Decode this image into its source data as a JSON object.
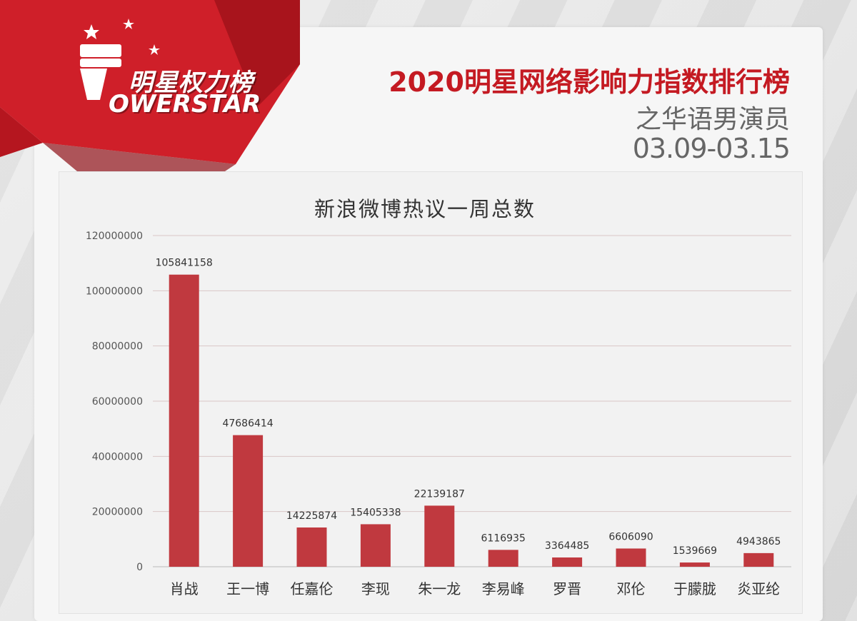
{
  "brand": {
    "logo_cn": "明星权力榜",
    "logo_en": "OWERSTAR"
  },
  "header": {
    "title": "2020明星网络影响力指数排行榜",
    "subtitle": "之华语男演员",
    "date_range": "03.09-03.15"
  },
  "colors": {
    "bar": "#c0393f",
    "accent": "#c41a22",
    "banner": "#d3202a"
  },
  "chart_data": {
    "type": "bar",
    "title": "新浪微博热议一周总数",
    "categories": [
      "肖战",
      "王一博",
      "任嘉伦",
      "李现",
      "朱一龙",
      "李易峰",
      "罗晋",
      "邓伦",
      "于朦胧",
      "炎亚纶"
    ],
    "values": [
      105841158,
      47686414,
      14225874,
      15405338,
      22139187,
      6116935,
      3364485,
      6606090,
      1539669,
      4943865
    ],
    "ylim": [
      0,
      120000000
    ],
    "yticks": [
      0,
      20000000,
      40000000,
      60000000,
      80000000,
      100000000,
      120000000
    ],
    "grid": true,
    "xlabel": "",
    "ylabel": ""
  }
}
